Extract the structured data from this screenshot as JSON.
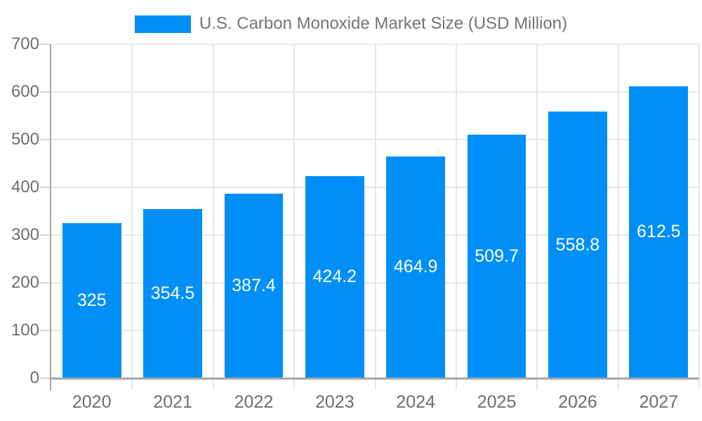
{
  "chart_data": {
    "type": "bar",
    "title": "U.S. Carbon Monoxide Market Size (USD Million)",
    "categories": [
      "2020",
      "2021",
      "2022",
      "2023",
      "2024",
      "2025",
      "2026",
      "2027"
    ],
    "values": [
      325,
      354.5,
      387.4,
      424.2,
      464.9,
      509.7,
      558.8,
      612.5
    ],
    "value_labels": [
      "325",
      "354.5",
      "387.4",
      "424.2",
      "464.9",
      "509.7",
      "558.8",
      "612.5"
    ],
    "xlabel": "",
    "ylabel": "",
    "ylim": [
      0,
      700
    ],
    "yticks": [
      700,
      600,
      500,
      400,
      300,
      200,
      100,
      0
    ],
    "grid": true,
    "legend_position": "top-center",
    "colors": {
      "bar": "#008ff8",
      "data_label": "#ffffff",
      "axis_text": "#6e6e6e",
      "legend_text": "#757575",
      "gridline": "#e7e7e7",
      "axis_line": "#a6a6a6",
      "tick": "#d6d6d6",
      "background": "#ffffff"
    }
  }
}
